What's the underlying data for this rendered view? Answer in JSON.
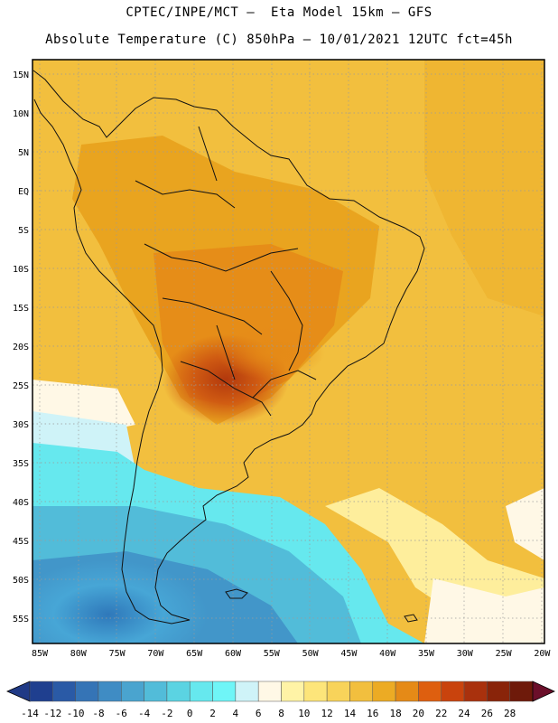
{
  "header": {
    "line1": "CPTEC/INPE/MCT –  Eta Model 15km – GFS",
    "line2": "Absolute Temperature (C) 850hPa – 10/01/2021 12UTC fct=45h"
  },
  "map": {
    "lat_labels": [
      "15N",
      "10N",
      "5N",
      "EQ",
      "5S",
      "10S",
      "15S",
      "20S",
      "25S",
      "30S",
      "35S",
      "40S",
      "45S",
      "50S",
      "55S"
    ],
    "lon_labels": [
      "85W",
      "80W",
      "75W",
      "70W",
      "65W",
      "60W",
      "55W",
      "50W",
      "45W",
      "40W",
      "35W",
      "30W",
      "25W",
      "20W"
    ]
  },
  "colorbar": {
    "labels": [
      "-14",
      "-12",
      "-10",
      "-8",
      "-6",
      "-4",
      "-2",
      "0",
      "2",
      "4",
      "6",
      "8",
      "10",
      "12",
      "14",
      "16",
      "18",
      "20",
      "22",
      "24",
      "26",
      "28"
    ],
    "colors": [
      "#1f3f8f",
      "#2a5aa6",
      "#3574b6",
      "#3f8cc4",
      "#4aa4cf",
      "#52bcd9",
      "#5bd3e2",
      "#66e8ee",
      "#6ff5f7",
      "#cff3f8",
      "#fff8e6",
      "#fff3a6",
      "#fde57a",
      "#f8d35a",
      "#f2bf3e",
      "#ecab24",
      "#e58a17",
      "#de5f0f",
      "#c9430d",
      "#a9310d",
      "#892409",
      "#6e1a0a"
    ],
    "low_arrow_color": "#203a86",
    "high_arrow_color": "#6b0f2a"
  }
}
